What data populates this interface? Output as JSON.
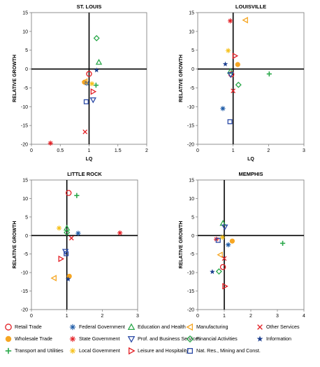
{
  "series_styles": [
    {
      "name": "Retail Trade",
      "marker": "circle-open",
      "color": "#e31e24"
    },
    {
      "name": "Wholesale Trade",
      "marker": "circle-filled",
      "color": "#f6a623"
    },
    {
      "name": "Transport and Utilities",
      "marker": "plus",
      "color": "#2aa84a"
    },
    {
      "name": "Federal Government",
      "marker": "asterisk",
      "color": "#1d5aa6"
    },
    {
      "name": "State Government",
      "marker": "asterisk",
      "color": "#e31e24"
    },
    {
      "name": "Local Government",
      "marker": "asterisk",
      "color": "#f6c11a"
    },
    {
      "name": "Education and Health",
      "marker": "triangle-up-open",
      "color": "#2aa84a"
    },
    {
      "name": "Prof. and Business Services",
      "marker": "triangle-down-open",
      "color": "#2b4aa6"
    },
    {
      "name": "Leisure and Hospitality",
      "marker": "triangle-right-open",
      "color": "#e31e24"
    },
    {
      "name": "Manufacturing",
      "marker": "triangle-left-open",
      "color": "#f6a623"
    },
    {
      "name": "Financial Activities",
      "marker": "diamond-open",
      "color": "#2aa84a"
    },
    {
      "name": "Nat. Res., Mining and Const.",
      "marker": "square-open",
      "color": "#2b4aa6"
    },
    {
      "name": "Other Services",
      "marker": "x",
      "color": "#e31e24"
    },
    {
      "name": "Information",
      "marker": "star",
      "color": "#1d3f8f"
    }
  ],
  "legend_layout": [
    [
      "Retail Trade",
      "Federal Government",
      "Education and Health",
      "Manufacturing",
      "Other Services"
    ],
    [
      "Wholesale Trade",
      "State Government",
      "Prof. and Business Services",
      "Financial Activities",
      "Information"
    ],
    [
      "Transport and Utilities",
      "Local Government",
      "Leisure and Hospitality",
      "Nat. Res., Mining and Const."
    ]
  ],
  "chart_data": [
    {
      "type": "scatter",
      "title": "ST. LOUIS",
      "xlabel": "LQ",
      "ylabel": "RELATIVE GROWTH",
      "xlim": [
        0,
        2
      ],
      "ylim": [
        -20,
        15
      ],
      "xticks": [
        "0",
        "0.5",
        "1",
        "1.5",
        "2"
      ],
      "xtick_values": [
        0,
        0.5,
        1,
        1.5,
        2
      ],
      "yticks": [
        "15",
        "10",
        "5",
        "0",
        "-5",
        "-10",
        "-15",
        "-20"
      ],
      "ytick_values": [
        15,
        10,
        5,
        0,
        -5,
        -10,
        -15,
        -20
      ],
      "crosshair": {
        "x": 1,
        "y": 0
      },
      "points": [
        {
          "series": "Retail Trade",
          "x": 1.0,
          "y": -1.3
        },
        {
          "series": "Wholesale Trade",
          "x": 0.92,
          "y": -3.5
        },
        {
          "series": "Transport and Utilities",
          "x": 1.12,
          "y": -4.3
        },
        {
          "series": "Federal Government",
          "x": 0.96,
          "y": -3.8
        },
        {
          "series": "State Government",
          "x": 0.33,
          "y": -19.7
        },
        {
          "series": "Local Government",
          "x": 1.05,
          "y": -3.9
        },
        {
          "series": "Education and Health",
          "x": 1.17,
          "y": 1.8
        },
        {
          "series": "Prof. and Business Services",
          "x": 1.07,
          "y": -8.2
        },
        {
          "series": "Leisure and Hospitality",
          "x": 1.07,
          "y": -6.0
        },
        {
          "series": "Manufacturing",
          "x": 0.93,
          "y": -3.3
        },
        {
          "series": "Financial Activities",
          "x": 1.13,
          "y": 8.2
        },
        {
          "series": "Nat. Res., Mining and Const.",
          "x": 0.95,
          "y": -8.7
        },
        {
          "series": "Other Services",
          "x": 0.93,
          "y": -16.7
        },
        {
          "series": "Information",
          "x": 1.13,
          "y": -0.3
        }
      ]
    },
    {
      "type": "scatter",
      "title": "LOUISVILLE",
      "xlabel": "LQ",
      "ylabel": "RELATIVE GROWTH",
      "xlim": [
        0,
        3
      ],
      "ylim": [
        -20,
        15
      ],
      "xticks": [
        "0",
        "1",
        "2",
        "3"
      ],
      "xtick_values": [
        0,
        1,
        2,
        3
      ],
      "yticks": [
        "15",
        "10",
        "5",
        "0",
        "-5",
        "-10",
        "-15",
        "-20"
      ],
      "ytick_values": [
        15,
        10,
        5,
        0,
        -5,
        -10,
        -15,
        -20
      ],
      "crosshair": {
        "x": 1,
        "y": 0
      },
      "points": [
        {
          "series": "Retail Trade",
          "x": 0.95,
          "y": -1.4
        },
        {
          "series": "Wholesale Trade",
          "x": 1.13,
          "y": 1.2
        },
        {
          "series": "Transport and Utilities",
          "x": 2.02,
          "y": -1.3
        },
        {
          "series": "Federal Government",
          "x": 0.71,
          "y": -10.5
        },
        {
          "series": "State Government",
          "x": 0.92,
          "y": 12.8
        },
        {
          "series": "Local Government",
          "x": 0.86,
          "y": 4.9
        },
        {
          "series": "Education and Health",
          "x": 0.92,
          "y": -0.6
        },
        {
          "series": "Prof. and Business Services",
          "x": 0.93,
          "y": -1.5
        },
        {
          "series": "Leisure and Hospitality",
          "x": 1.05,
          "y": 3.5
        },
        {
          "series": "Manufacturing",
          "x": 1.35,
          "y": 13.0
        },
        {
          "series": "Financial Activities",
          "x": 1.15,
          "y": -4.2
        },
        {
          "series": "Nat. Res., Mining and Const.",
          "x": 0.91,
          "y": -14.0
        },
        {
          "series": "Other Services",
          "x": 1.0,
          "y": -5.8
        },
        {
          "series": "Information",
          "x": 0.78,
          "y": 1.3
        }
      ]
    },
    {
      "type": "scatter",
      "title": "LITTLE ROCK",
      "xlabel": "LQ",
      "ylabel": "RELATIVE GROWTH",
      "xlim": [
        0,
        3
      ],
      "ylim": [
        -20,
        15
      ],
      "xticks": [
        "0",
        "1",
        "2",
        "3"
      ],
      "xtick_values": [
        0,
        1,
        2,
        3
      ],
      "yticks": [
        "15",
        "10",
        "5",
        "0",
        "-5",
        "-10",
        "-15",
        "-20"
      ],
      "ytick_values": [
        15,
        10,
        5,
        0,
        -5,
        -10,
        -15,
        -20
      ],
      "crosshair": {
        "x": 1,
        "y": 0
      },
      "points": [
        {
          "series": "Retail Trade",
          "x": 1.05,
          "y": 11.5
        },
        {
          "series": "Wholesale Trade",
          "x": 1.07,
          "y": -11.0
        },
        {
          "series": "Transport and Utilities",
          "x": 1.28,
          "y": 10.8
        },
        {
          "series": "Federal Government",
          "x": 1.32,
          "y": 0.6
        },
        {
          "series": "State Government",
          "x": 2.5,
          "y": 0.7
        },
        {
          "series": "Local Government",
          "x": 0.78,
          "y": 2.0
        },
        {
          "series": "Education and Health",
          "x": 1.0,
          "y": 2.0
        },
        {
          "series": "Prof. and Business Services",
          "x": 0.96,
          "y": -4.3
        },
        {
          "series": "Leisure and Hospitality",
          "x": 0.83,
          "y": -6.3
        },
        {
          "series": "Manufacturing",
          "x": 0.64,
          "y": -11.5
        },
        {
          "series": "Financial Activities",
          "x": 1.0,
          "y": 0.8
        },
        {
          "series": "Nat. Res., Mining and Const.",
          "x": 0.98,
          "y": -4.9
        },
        {
          "series": "Other Services",
          "x": 1.13,
          "y": -0.7
        },
        {
          "series": "Information",
          "x": 1.04,
          "y": -11.8
        }
      ]
    },
    {
      "type": "scatter",
      "title": "MEMPHIS",
      "xlabel": "LQ",
      "ylabel": "RELATIVE GROWTH",
      "xlim": [
        0,
        4
      ],
      "ylim": [
        -20,
        15
      ],
      "xticks": [
        "0",
        "1",
        "2",
        "3",
        "4"
      ],
      "xtick_values": [
        0,
        1,
        2,
        3,
        4
      ],
      "yticks": [
        "15",
        "10",
        "5",
        "0",
        "-5",
        "-10",
        "-15",
        "-20"
      ],
      "ytick_values": [
        15,
        10,
        5,
        0,
        -5,
        -10,
        -15,
        -20
      ],
      "crosshair": {
        "x": 1,
        "y": 0
      },
      "points": [
        {
          "series": "Retail Trade",
          "x": 0.95,
          "y": -8.5
        },
        {
          "series": "Wholesale Trade",
          "x": 1.3,
          "y": -1.5
        },
        {
          "series": "Transport and Utilities",
          "x": 3.2,
          "y": -2.1
        },
        {
          "series": "Federal Government",
          "x": 1.15,
          "y": -2.5
        },
        {
          "series": "State Government",
          "x": 0.7,
          "y": -1.0
        },
        {
          "series": "Local Government",
          "x": 0.93,
          "y": -0.5
        },
        {
          "series": "Education and Health",
          "x": 0.95,
          "y": 3.3
        },
        {
          "series": "Prof. and Business Services",
          "x": 1.02,
          "y": 2.3
        },
        {
          "series": "Leisure and Hospitality",
          "x": 1.02,
          "y": -13.7
        },
        {
          "series": "Manufacturing",
          "x": 0.85,
          "y": -5.2
        },
        {
          "series": "Financial Activities",
          "x": 0.8,
          "y": -9.7
        },
        {
          "series": "Nat. Res., Mining and Const.",
          "x": 0.77,
          "y": -1.3
        },
        {
          "series": "Other Services",
          "x": 1.0,
          "y": -6.2
        },
        {
          "series": "Information",
          "x": 0.55,
          "y": -9.8
        }
      ]
    }
  ]
}
